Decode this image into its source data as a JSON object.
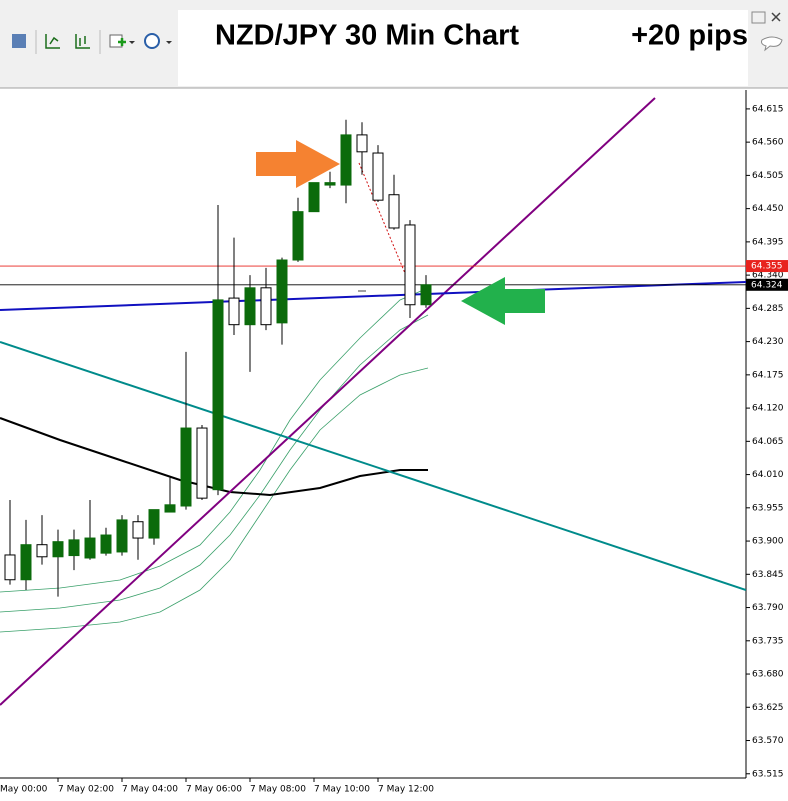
{
  "chart_data": {
    "type": "candlestick",
    "title": "NZD/JPY  30 Min Chart",
    "subtitle": "+20 pips",
    "categories": [
      "May 00:00",
      null,
      null,
      null,
      "7 May 02:00",
      null,
      null,
      null,
      "7 May 04:00",
      null,
      null,
      null,
      "7 May 06:00",
      null,
      null,
      null,
      "7 May 08:00",
      null,
      null,
      null,
      "7 May 10:00",
      null,
      null,
      null,
      "7 May 12:00",
      null,
      null,
      null
    ],
    "open": [
      null,
      63.877,
      63.836,
      63.894,
      63.874,
      63.876,
      63.872,
      63.88,
      63.882,
      63.932,
      63.905,
      63.948,
      63.958,
      64.087,
      63.985,
      64.302,
      64.258,
      64.319,
      64.261,
      64.365,
      64.445,
      64.489,
      64.489,
      64.572,
      64.542,
      64.473,
      64.423,
      64.291
    ],
    "high": [
      null,
      63.968,
      63.935,
      63.943,
      63.919,
      63.919,
      63.968,
      63.922,
      63.943,
      63.943,
      63.952,
      64.005,
      64.213,
      64.092,
      64.456,
      64.402,
      64.34,
      64.352,
      64.369,
      64.468,
      64.493,
      64.511,
      64.597,
      64.593,
      64.555,
      64.506,
      64.431,
      64.34
    ],
    "low": [
      null,
      63.828,
      63.819,
      63.861,
      63.808,
      63.852,
      63.869,
      63.876,
      63.876,
      63.869,
      63.894,
      63.948,
      63.952,
      63.968,
      63.976,
      64.241,
      64.18,
      64.249,
      64.225,
      64.362,
      64.445,
      64.484,
      64.459,
      64.506,
      64.461,
      64.415,
      64.269,
      64.286
    ],
    "close": [
      null,
      63.836,
      63.894,
      63.874,
      63.899,
      63.902,
      63.905,
      63.91,
      63.935,
      63.905,
      63.952,
      63.96,
      64.087,
      63.971,
      64.299,
      64.258,
      64.319,
      64.258,
      64.365,
      64.445,
      64.493,
      64.493,
      64.572,
      64.544,
      64.464,
      64.418,
      64.291,
      64.324
    ],
    "up_color": "#0b6b0b",
    "down_color": "#ffffff",
    "ylim": [
      63.508,
      64.638
    ],
    "yticks": [
      64.615,
      {
        "value": 64.56,
        "label": "64.560"
      },
      64.505,
      {
        "value": 64.45,
        "label": "64.450"
      },
      64.395,
      {
        "value": 64.34,
        "label": "64.340"
      },
      64.285,
      {
        "value": 64.23,
        "label": "64.230"
      },
      64.175,
      {
        "value": 64.12,
        "label": "64.120"
      },
      64.065,
      {
        "value": 64.01,
        "label": "64.010"
      },
      63.955,
      {
        "value": 63.9,
        "label": "63.900"
      },
      63.845,
      {
        "value": 63.79,
        "label": "63.790"
      },
      63.735,
      {
        "value": 63.68,
        "label": "63.680"
      },
      63.625,
      {
        "value": 63.57,
        "label": "63.570"
      },
      63.515
    ],
    "levels": [
      {
        "value": 64.355,
        "color": "#e8231e"
      },
      {
        "value": 64.324,
        "color": "#000000"
      }
    ]
  }
}
